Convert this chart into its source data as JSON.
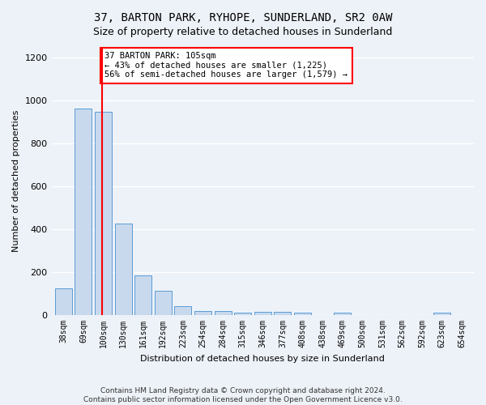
{
  "title": "37, BARTON PARK, RYHOPE, SUNDERLAND, SR2 0AW",
  "subtitle": "Size of property relative to detached houses in Sunderland",
  "xlabel": "Distribution of detached houses by size in Sunderland",
  "ylabel": "Number of detached properties",
  "categories": [
    "38sqm",
    "69sqm",
    "100sqm",
    "130sqm",
    "161sqm",
    "192sqm",
    "223sqm",
    "254sqm",
    "284sqm",
    "315sqm",
    "346sqm",
    "377sqm",
    "408sqm",
    "438sqm",
    "469sqm",
    "500sqm",
    "531sqm",
    "562sqm",
    "592sqm",
    "623sqm",
    "654sqm"
  ],
  "values": [
    125,
    960,
    945,
    425,
    185,
    115,
    43,
    20,
    18,
    10,
    15,
    15,
    10,
    2,
    10,
    2,
    2,
    2,
    2,
    10,
    2
  ],
  "bar_color": "#c8d9ee",
  "bar_edge_color": "#5b9bd5",
  "property_bin_index": 2,
  "annotation_line1": "37 BARTON PARK: 105sqm",
  "annotation_line2": "← 43% of detached houses are smaller (1,225)",
  "annotation_line3": "56% of semi-detached houses are larger (1,579) →",
  "annotation_box_color": "white",
  "annotation_box_edge_color": "red",
  "vline_color": "red",
  "ylim": [
    0,
    1250
  ],
  "yticks": [
    0,
    200,
    400,
    600,
    800,
    1000,
    1200
  ],
  "footer": "Contains HM Land Registry data © Crown copyright and database right 2024.\nContains public sector information licensed under the Open Government Licence v3.0.",
  "bg_color": "#edf2f8",
  "plot_bg_color": "#edf2f8",
  "grid_color": "white",
  "title_fontsize": 10,
  "subtitle_fontsize": 9
}
